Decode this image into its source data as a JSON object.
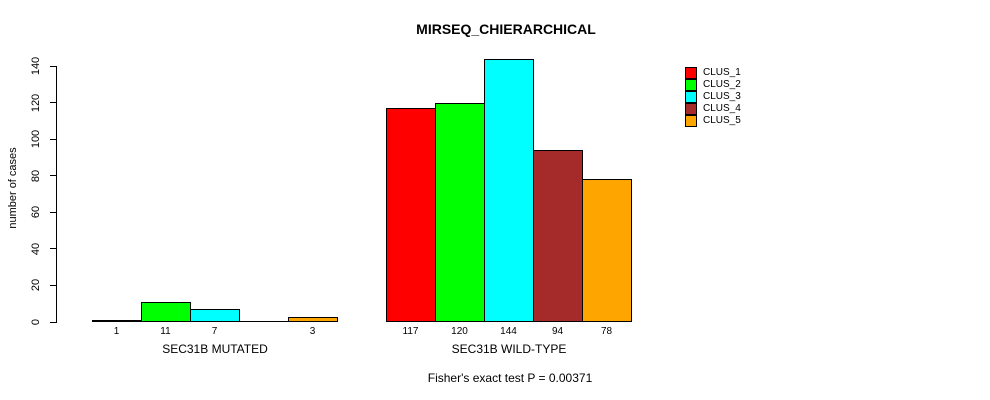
{
  "chart_data": {
    "type": "bar",
    "title": "MIRSEQ_CHIERARCHICAL",
    "ylabel": "number of cases",
    "ylim": [
      0,
      140
    ],
    "yticks": [
      0,
      20,
      40,
      60,
      80,
      100,
      120,
      140
    ],
    "grid": false,
    "legend_position": "right",
    "series": [
      {
        "name": "CLUS_1",
        "color": "#FF0000",
        "values": [
          1,
          117
        ]
      },
      {
        "name": "CLUS_2",
        "color": "#00FF00",
        "values": [
          11,
          120
        ]
      },
      {
        "name": "CLUS_3",
        "color": "#00FFFF",
        "values": [
          7,
          144
        ]
      },
      {
        "name": "CLUS_4",
        "color": "#A52A2A",
        "values": [
          0,
          94
        ]
      },
      {
        "name": "CLUS_5",
        "color": "#FFA500",
        "values": [
          3,
          78
        ]
      }
    ],
    "groups": [
      {
        "label": "SEC31B MUTATED",
        "bar_labels": [
          "1",
          "11",
          "7",
          "",
          "3"
        ]
      },
      {
        "label": "SEC31B WILD-TYPE",
        "bar_labels": [
          "117",
          "120",
          "144",
          "94",
          "78"
        ]
      }
    ],
    "annotation": "Fisher's exact test P = 0.00371"
  }
}
